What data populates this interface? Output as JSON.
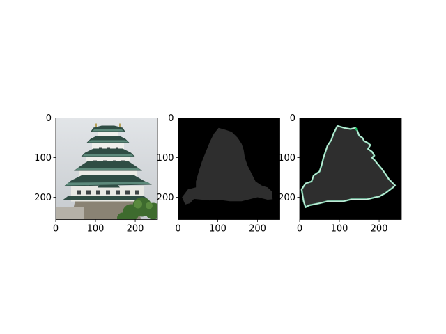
{
  "figure": {
    "background": "#ffffff"
  },
  "chart_data": [
    {
      "type": "image",
      "content": "photo of a tiered Japanese castle with green roofs against a pale sky, trees at lower right",
      "xlim": [
        0,
        256
      ],
      "ylim": [
        256,
        0
      ],
      "xticks": [
        0,
        100,
        200
      ],
      "yticks": [
        0,
        100,
        200
      ],
      "xtick_labels": [
        "0",
        "100",
        "200"
      ],
      "ytick_labels": [
        "0",
        "100",
        "200"
      ],
      "title": "",
      "xlabel": "",
      "ylabel": ""
    },
    {
      "type": "image",
      "content": "segmentation mask: dark-gray castle silhouette on black",
      "xlim": [
        0,
        256
      ],
      "ylim": [
        256,
        0
      ],
      "xticks": [
        0,
        100,
        200
      ],
      "yticks": [
        0,
        100,
        200
      ],
      "xtick_labels": [
        "0",
        "100",
        "200"
      ],
      "ytick_labels": [
        "0",
        "100",
        "200"
      ],
      "mask_color": "#2e2e2e",
      "background_color": "#000000",
      "outline": [
        [
          102,
          25
        ],
        [
          120,
          30
        ],
        [
          135,
          35
        ],
        [
          150,
          50
        ],
        [
          160,
          65
        ],
        [
          165,
          80
        ],
        [
          168,
          100
        ],
        [
          175,
          120
        ],
        [
          185,
          140
        ],
        [
          195,
          160
        ],
        [
          210,
          170
        ],
        [
          225,
          175
        ],
        [
          236,
          185
        ],
        [
          238,
          205
        ],
        [
          225,
          206
        ],
        [
          200,
          200
        ],
        [
          180,
          205
        ],
        [
          160,
          210
        ],
        [
          130,
          210
        ],
        [
          100,
          206
        ],
        [
          80,
          208
        ],
        [
          60,
          206
        ],
        [
          40,
          204
        ],
        [
          30,
          215
        ],
        [
          18,
          218
        ],
        [
          10,
          200
        ],
        [
          25,
          180
        ],
        [
          45,
          175
        ],
        [
          45,
          160
        ],
        [
          52,
          135
        ],
        [
          60,
          110
        ],
        [
          70,
          85
        ],
        [
          80,
          60
        ],
        [
          90,
          40
        ]
      ],
      "title": "",
      "xlabel": "",
      "ylabel": ""
    },
    {
      "type": "image",
      "content": "mask overlay with green/white contour tracing the castle silhouette on black",
      "xlim": [
        0,
        256
      ],
      "ylim": [
        256,
        0
      ],
      "xticks": [
        0,
        100,
        200
      ],
      "yticks": [
        0,
        100,
        200
      ],
      "xtick_labels": [
        "0",
        "100",
        "200"
      ],
      "ytick_labels": [
        "0",
        "100",
        "200"
      ],
      "mask_color": "#2e2e2e",
      "background_color": "#000000",
      "contour_colors": [
        "#7fd4b0",
        "#d8f0e4",
        "#19c060"
      ],
      "outline": [
        [
          95,
          20
        ],
        [
          112,
          25
        ],
        [
          128,
          28
        ],
        [
          140,
          25
        ],
        [
          145,
          32
        ],
        [
          150,
          45
        ],
        [
          158,
          50
        ],
        [
          162,
          58
        ],
        [
          170,
          62
        ],
        [
          178,
          68
        ],
        [
          172,
          78
        ],
        [
          182,
          85
        ],
        [
          188,
          95
        ],
        [
          182,
          100
        ],
        [
          190,
          108
        ],
        [
          198,
          118
        ],
        [
          208,
          130
        ],
        [
          215,
          140
        ],
        [
          225,
          155
        ],
        [
          240,
          170
        ],
        [
          235,
          175
        ],
        [
          215,
          190
        ],
        [
          200,
          198
        ],
        [
          190,
          200
        ],
        [
          170,
          205
        ],
        [
          150,
          205
        ],
        [
          130,
          205
        ],
        [
          110,
          210
        ],
        [
          90,
          210
        ],
        [
          70,
          210
        ],
        [
          50,
          215
        ],
        [
          25,
          220
        ],
        [
          20,
          222
        ],
        [
          15,
          225
        ],
        [
          10,
          210
        ],
        [
          5,
          180
        ],
        [
          15,
          165
        ],
        [
          30,
          160
        ],
        [
          35,
          145
        ],
        [
          50,
          135
        ],
        [
          55,
          120
        ],
        [
          60,
          100
        ],
        [
          65,
          85
        ],
        [
          70,
          70
        ],
        [
          80,
          55
        ],
        [
          85,
          40
        ]
      ],
      "title": "",
      "xlabel": "",
      "ylabel": ""
    }
  ]
}
